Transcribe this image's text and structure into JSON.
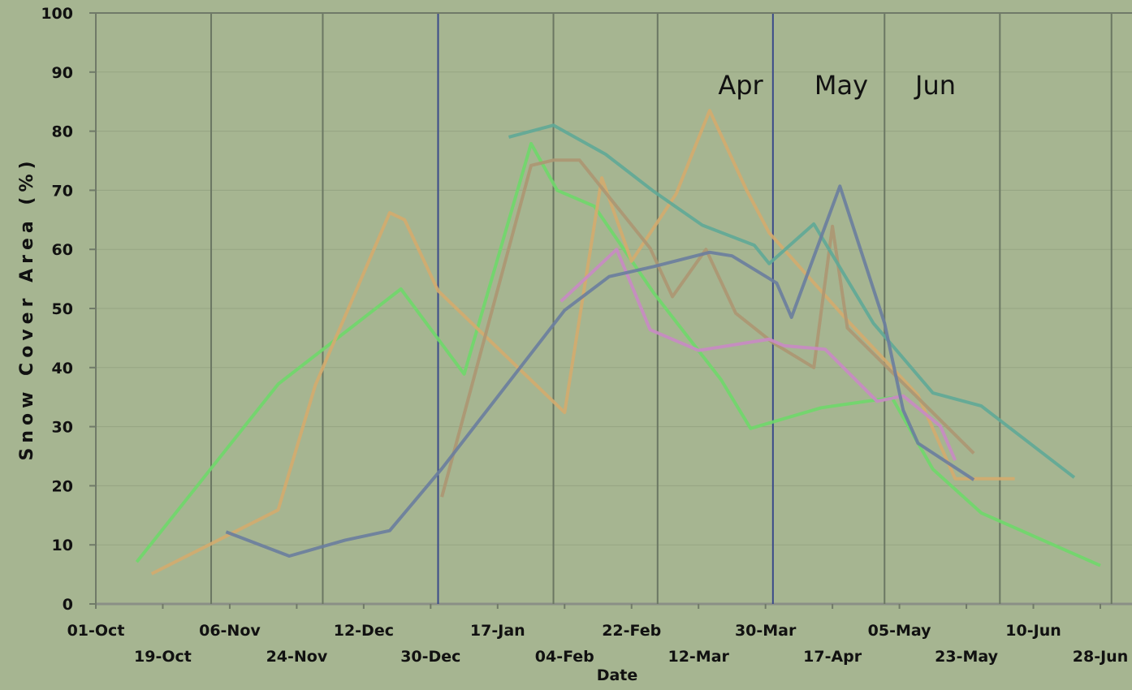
{
  "chart_data": {
    "type": "line",
    "xlabel": "Date",
    "ylabel": "Snow Cover Area (%)",
    "annotations": [
      "Apr",
      "May",
      "Jun"
    ],
    "xticks": [
      "01-Oct",
      "19-Oct",
      "06-Nov",
      "24-Nov",
      "12-Dec",
      "30-Dec",
      "17-Jan",
      "04-Feb",
      "22-Feb",
      "12-Mar",
      "30-Mar",
      "17-Apr",
      "05-May",
      "23-May",
      "10-Jun",
      "28-Jun"
    ],
    "month_lines": [
      "01-Nov",
      "01-Dec",
      "01-Jan",
      "01-Feb",
      "01-Mar",
      "01-Apr",
      "01-May",
      "01-Jun",
      "01-Jul"
    ],
    "highlight_lines": [
      "01-Jan",
      "01-Apr"
    ],
    "highlight_color": "#3a4a8a",
    "ylim": [
      0,
      100
    ],
    "yticks": [
      0,
      10,
      20,
      30,
      40,
      50,
      60,
      70,
      80,
      90,
      100
    ],
    "grid": true,
    "series": [
      {
        "color": "#6fd86a",
        "x": [
          "12-Oct",
          "19-Nov",
          "22-Dec",
          "08-Jan",
          "26-Jan",
          "02-Feb",
          "12-Feb",
          "28-Feb",
          "18-Mar",
          "26-Mar",
          "14-Apr",
          "03-May",
          "14-May",
          "27-May",
          "28-Jun"
        ],
        "values": [
          7.1,
          37.2,
          53.3,
          38.9,
          77.9,
          70,
          67.3,
          52.6,
          38,
          29.7,
          33.2,
          34.9,
          22.8,
          15.4,
          6.5
        ]
      },
      {
        "color": "#d4ab6e",
        "x": [
          "16-Oct",
          "19-Nov",
          "29-Nov",
          "19-Dec",
          "23-Dec",
          "01-Jan",
          "04-Feb",
          "14-Feb",
          "22-Feb",
          "06-Mar",
          "15-Mar",
          "25-Mar",
          "31-Mar",
          "21-Apr",
          "10-May",
          "20-May",
          "05-Jun"
        ],
        "values": [
          5.1,
          15.9,
          37,
          66.2,
          65,
          53,
          32.4,
          72.1,
          58,
          69.4,
          83.5,
          69.9,
          62.8,
          48,
          35.3,
          21.2,
          21.2
        ]
      },
      {
        "color": "#ad9672",
        "x": [
          "02-Jan",
          "26-Jan",
          "01-Feb",
          "08-Feb",
          "27-Feb",
          "05-Mar",
          "14-Mar",
          "22-Mar",
          "01-Apr",
          "12-Apr",
          "17-Apr",
          "21-Apr",
          "25-May"
        ],
        "values": [
          18.1,
          74.2,
          75.1,
          75.1,
          60.2,
          52,
          60,
          49.2,
          44.2,
          40,
          63.9,
          46.7,
          25.5
        ]
      },
      {
        "color": "#5fa897",
        "x": [
          "20-Jan",
          "01-Feb",
          "15-Feb",
          "28-Feb",
          "13-Mar",
          "27-Mar",
          "31-Mar",
          "12-Apr",
          "28-Apr",
          "14-May",
          "27-May",
          "21-Jun"
        ],
        "values": [
          79,
          81,
          76.1,
          69.8,
          64.1,
          60.7,
          57.6,
          64.3,
          47.5,
          35.7,
          33.5,
          21.4
        ]
      },
      {
        "color": "#c98ac4",
        "x": [
          "03-Feb",
          "18-Feb",
          "27-Feb",
          "12-Mar",
          "31-Mar",
          "04-Apr",
          "15-Apr",
          "29-Apr",
          "06-May",
          "16-May",
          "20-May"
        ],
        "values": [
          51.2,
          60,
          46.4,
          42.9,
          44.8,
          43.7,
          43.1,
          34.3,
          35.2,
          30.1,
          24.3
        ]
      },
      {
        "color": "#6a7d9e",
        "x": [
          "05-Nov",
          "22-Nov",
          "07-Dec",
          "19-Dec",
          "02-Jan",
          "04-Feb",
          "16-Feb",
          "28-Feb",
          "15-Mar",
          "21-Mar",
          "02-Apr",
          "06-Apr",
          "19-Apr",
          "01-May",
          "06-May",
          "10-May",
          "25-May"
        ],
        "values": [
          12.2,
          8.1,
          10.8,
          12.4,
          22.9,
          49.7,
          55.4,
          57.1,
          59.5,
          58.9,
          54.3,
          48.5,
          70.7,
          47.5,
          32.8,
          27.2,
          21
        ]
      }
    ]
  }
}
